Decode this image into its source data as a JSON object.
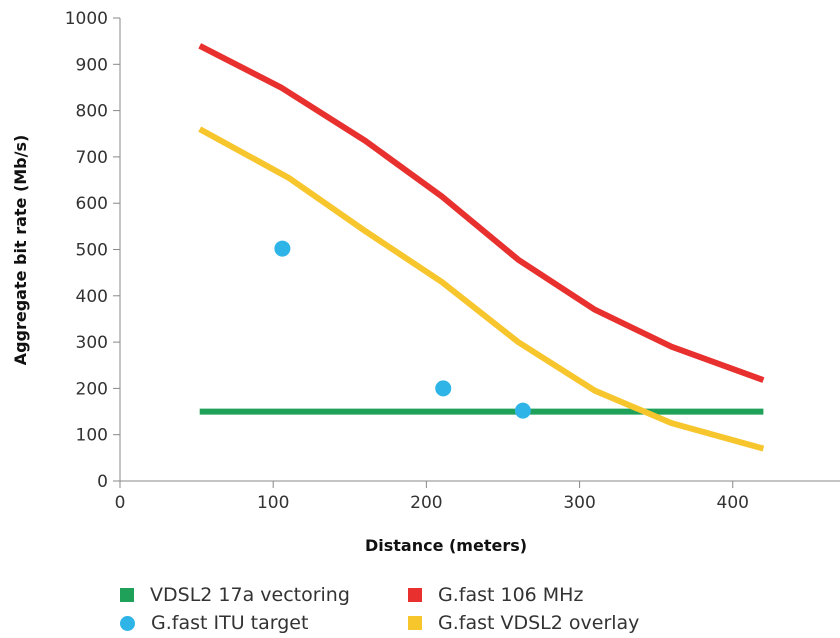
{
  "chart_data": {
    "type": "line",
    "title": "",
    "xlabel": "Distance (meters)",
    "ylabel": "Aggregate bit rate (Mb/s)",
    "xlim": [
      0,
      470
    ],
    "ylim": [
      0,
      1000
    ],
    "x_ticks": [
      0,
      100,
      200,
      300,
      400
    ],
    "y_ticks": [
      0,
      100,
      200,
      300,
      400,
      500,
      600,
      700,
      800,
      900,
      1000
    ],
    "grid": false,
    "legend_position": "bottom",
    "series": [
      {
        "name": "VDSL2 17a vectoring",
        "kind": "line",
        "color": "#1fa15a",
        "points": [
          [
            52,
            150
          ],
          [
            420,
            150
          ]
        ]
      },
      {
        "name": "G.fast 106 MHz",
        "kind": "line",
        "color": "#e8312f",
        "points": [
          [
            52,
            940
          ],
          [
            105,
            850
          ],
          [
            160,
            735
          ],
          [
            210,
            615
          ],
          [
            260,
            478
          ],
          [
            310,
            370
          ],
          [
            360,
            290
          ],
          [
            420,
            218
          ]
        ]
      },
      {
        "name": "G.fast ITU target",
        "kind": "scatter",
        "color": "#2eb4e6",
        "points": [
          [
            106,
            502
          ],
          [
            211,
            200
          ],
          [
            263,
            152
          ]
        ]
      },
      {
        "name": "G.fast VDSL2 overlay",
        "kind": "line",
        "color": "#f7c52c",
        "points": [
          [
            52,
            760
          ],
          [
            110,
            655
          ],
          [
            160,
            540
          ],
          [
            210,
            430
          ],
          [
            260,
            300
          ],
          [
            310,
            195
          ],
          [
            360,
            125
          ],
          [
            420,
            70
          ]
        ]
      }
    ],
    "legend_order": [
      0,
      1,
      2,
      3
    ]
  }
}
